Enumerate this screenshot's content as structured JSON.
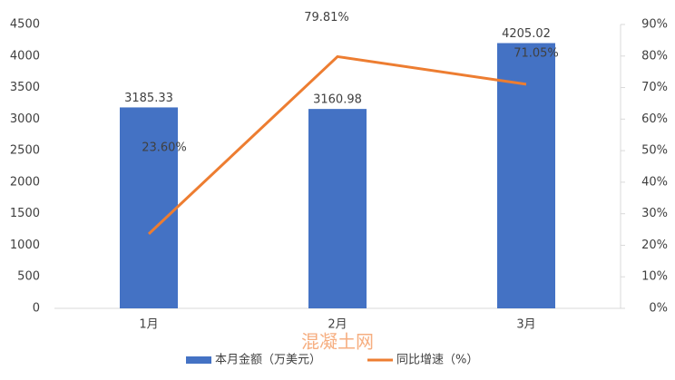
{
  "chart_data": {
    "type": "bar-line",
    "categories": [
      "1月",
      "2月",
      "3月"
    ],
    "series": [
      {
        "name": "本月金额（万美元）",
        "type": "bar",
        "color": "#4472c4",
        "values": [
          3185.33,
          3160.98,
          4205.02
        ]
      },
      {
        "name": "同比增速（%）",
        "type": "line",
        "axis": "y2",
        "color": "#ed7d31",
        "values": [
          23.6,
          79.81,
          71.05
        ],
        "value_labels": [
          "23.60%",
          "79.81%",
          "71.05%"
        ]
      }
    ],
    "ylim": [
      0,
      4500
    ],
    "yticks": [
      0,
      500,
      1000,
      1500,
      2000,
      2500,
      3000,
      3500,
      4000,
      4500
    ],
    "y2lim": [
      0,
      90
    ],
    "y2ticks": [
      {
        "value": 0,
        "label": "0%"
      },
      {
        "value": 10,
        "label": "10%"
      },
      {
        "value": 20,
        "label": "20%"
      },
      {
        "value": 30,
        "label": "30%"
      },
      {
        "value": 40,
        "label": "40%"
      },
      {
        "value": 50,
        "label": "50%"
      },
      {
        "value": 60,
        "label": "60%"
      },
      {
        "value": 70,
        "label": "70%"
      },
      {
        "value": 80,
        "label": "80%"
      },
      {
        "value": 90,
        "label": "90%"
      }
    ],
    "grid": false,
    "legend": "bottom",
    "watermark": "混凝土网"
  }
}
